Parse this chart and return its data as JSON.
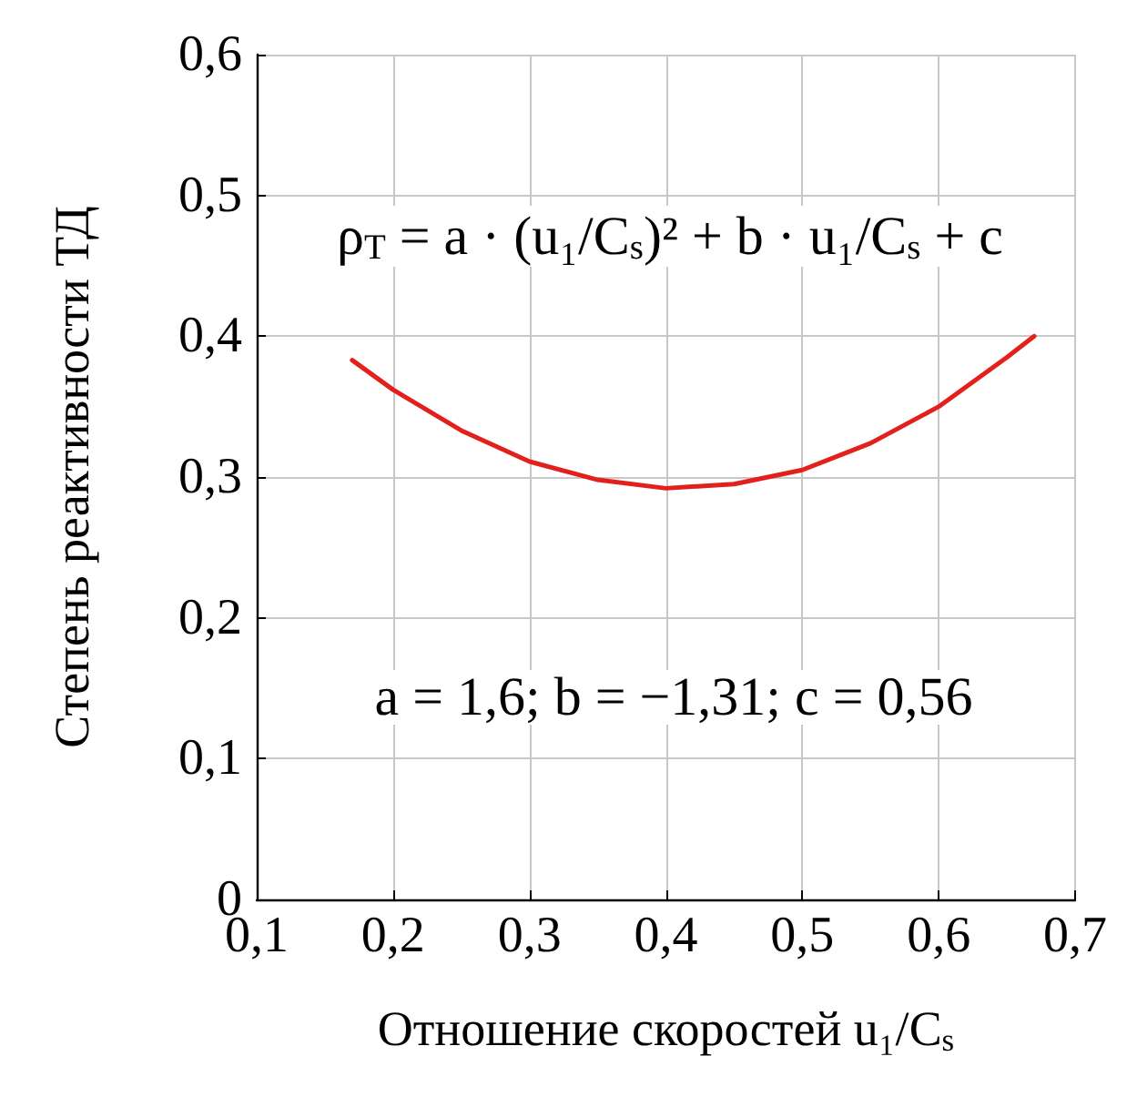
{
  "chart_data": {
    "type": "line",
    "xlabel": "Отношение скоростей u₁/C$_{s}$",
    "ylabel": "Степень реактивности ТД",
    "x": [
      0.17,
      0.2,
      0.25,
      0.3,
      0.35,
      0.4,
      0.45,
      0.5,
      0.55,
      0.6,
      0.65,
      0.67
    ],
    "series": [
      {
        "color": "#e3211c",
        "values": [
          0.383,
          0.362,
          0.333,
          0.311,
          0.298,
          0.292,
          0.295,
          0.305,
          0.324,
          0.35,
          0.385,
          0.4
        ]
      }
    ],
    "xlim": [
      0.1,
      0.7
    ],
    "xticks": [
      {
        "value": 0.1,
        "label": "0,1"
      },
      {
        "value": 0.2,
        "label": "0,2"
      },
      {
        "value": 0.3,
        "label": "0,3"
      },
      {
        "value": 0.4,
        "label": "0,4"
      },
      {
        "value": 0.5,
        "label": "0,5"
      },
      {
        "value": 0.6,
        "label": "0,6"
      },
      {
        "value": 0.7,
        "label": "0,7"
      }
    ],
    "ylim": [
      0,
      0.6
    ],
    "yticks": [
      0,
      {
        "value": 0.1,
        "label": "0,1"
      },
      {
        "value": 0.2,
        "label": "0,2"
      },
      {
        "value": 0.3,
        "label": "0,3"
      },
      {
        "value": 0.4,
        "label": "0,4"
      },
      {
        "value": 0.5,
        "label": "0,5"
      },
      {
        "value": 0.6,
        "label": "0,6"
      }
    ],
    "annotations": [
      "ρ$_{T}$ = a · (u₁/C$_{s}$)² + b · u₁/C$_{s}$ + c",
      "a = 1,6; b = −1,31; c = 0,56"
    ],
    "grid": true,
    "marker": "none",
    "line_style": "solid"
  }
}
